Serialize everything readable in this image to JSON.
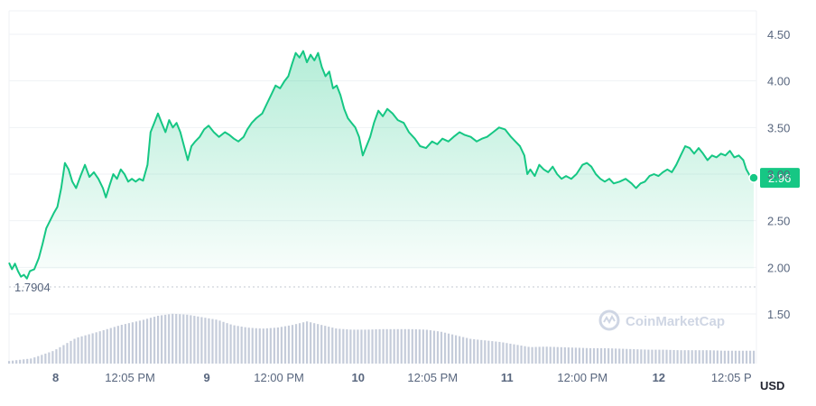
{
  "chart_data": {
    "type": "area",
    "unit": "USD",
    "price_line": {
      "color": "#16c784",
      "fill_top": "#16c784"
    },
    "volume_color": "#c5ccda",
    "current_price": {
      "label": "2.96",
      "value": 2.96
    },
    "reference_line": {
      "label": "1.7904",
      "value": 1.7904
    },
    "watermark": "CoinMarketCap",
    "ylim": [
      1.05,
      4.72
    ],
    "y_ticks": [
      {
        "label": "4.50",
        "value": 4.5
      },
      {
        "label": "4.00",
        "value": 4.0
      },
      {
        "label": "3.50",
        "value": 3.5
      },
      {
        "label": "3.00",
        "value": 3.0
      },
      {
        "label": "2.50",
        "value": 2.5
      },
      {
        "label": "2.00",
        "value": 2.0
      },
      {
        "label": "1.50",
        "value": 1.5
      }
    ],
    "x_ticks": [
      {
        "label": "8",
        "t": 0.0625,
        "day": true
      },
      {
        "label": "12:05 PM",
        "t": 0.1625,
        "day": false
      },
      {
        "label": "9",
        "t": 0.2656,
        "day": true
      },
      {
        "label": "12:00 PM",
        "t": 0.3625,
        "day": false
      },
      {
        "label": "10",
        "t": 0.4688,
        "day": true
      },
      {
        "label": "12:05 PM",
        "t": 0.5688,
        "day": false
      },
      {
        "label": "11",
        "t": 0.6688,
        "day": true
      },
      {
        "label": "12:00 PM",
        "t": 0.77,
        "day": false
      },
      {
        "label": "12",
        "t": 0.8725,
        "day": true
      },
      {
        "label": "12:05 P",
        "t": 0.97,
        "day": false
      }
    ],
    "series": [
      {
        "values": [
          [
            0.0,
            2.05
          ],
          [
            0.004,
            1.98
          ],
          [
            0.008,
            2.04
          ],
          [
            0.012,
            1.96
          ],
          [
            0.016,
            1.9
          ],
          [
            0.02,
            1.92
          ],
          [
            0.024,
            1.88
          ],
          [
            0.028,
            1.96
          ],
          [
            0.034,
            1.98
          ],
          [
            0.04,
            2.1
          ],
          [
            0.045,
            2.25
          ],
          [
            0.05,
            2.42
          ],
          [
            0.055,
            2.5
          ],
          [
            0.06,
            2.58
          ],
          [
            0.065,
            2.65
          ],
          [
            0.07,
            2.85
          ],
          [
            0.075,
            3.12
          ],
          [
            0.08,
            3.05
          ],
          [
            0.085,
            2.92
          ],
          [
            0.09,
            2.85
          ],
          [
            0.096,
            2.98
          ],
          [
            0.102,
            3.1
          ],
          [
            0.108,
            2.97
          ],
          [
            0.114,
            3.02
          ],
          [
            0.12,
            2.95
          ],
          [
            0.126,
            2.85
          ],
          [
            0.13,
            2.75
          ],
          [
            0.135,
            2.88
          ],
          [
            0.14,
            3.0
          ],
          [
            0.145,
            2.95
          ],
          [
            0.15,
            3.05
          ],
          [
            0.155,
            3.0
          ],
          [
            0.16,
            2.92
          ],
          [
            0.165,
            2.95
          ],
          [
            0.17,
            2.92
          ],
          [
            0.175,
            2.95
          ],
          [
            0.18,
            2.93
          ],
          [
            0.186,
            3.1
          ],
          [
            0.19,
            3.45
          ],
          [
            0.195,
            3.55
          ],
          [
            0.2,
            3.65
          ],
          [
            0.205,
            3.55
          ],
          [
            0.21,
            3.45
          ],
          [
            0.215,
            3.58
          ],
          [
            0.22,
            3.5
          ],
          [
            0.225,
            3.55
          ],
          [
            0.23,
            3.45
          ],
          [
            0.235,
            3.3
          ],
          [
            0.24,
            3.15
          ],
          [
            0.245,
            3.3
          ],
          [
            0.25,
            3.35
          ],
          [
            0.256,
            3.4
          ],
          [
            0.262,
            3.48
          ],
          [
            0.268,
            3.52
          ],
          [
            0.275,
            3.45
          ],
          [
            0.282,
            3.4
          ],
          [
            0.29,
            3.45
          ],
          [
            0.296,
            3.42
          ],
          [
            0.302,
            3.38
          ],
          [
            0.308,
            3.35
          ],
          [
            0.315,
            3.4
          ],
          [
            0.32,
            3.48
          ],
          [
            0.326,
            3.55
          ],
          [
            0.332,
            3.6
          ],
          [
            0.34,
            3.65
          ],
          [
            0.346,
            3.75
          ],
          [
            0.352,
            3.85
          ],
          [
            0.358,
            3.95
          ],
          [
            0.364,
            3.92
          ],
          [
            0.37,
            4.0
          ],
          [
            0.375,
            4.05
          ],
          [
            0.38,
            4.18
          ],
          [
            0.385,
            4.3
          ],
          [
            0.39,
            4.25
          ],
          [
            0.395,
            4.32
          ],
          [
            0.4,
            4.2
          ],
          [
            0.405,
            4.28
          ],
          [
            0.41,
            4.22
          ],
          [
            0.415,
            4.3
          ],
          [
            0.42,
            4.15
          ],
          [
            0.425,
            4.05
          ],
          [
            0.43,
            4.1
          ],
          [
            0.435,
            3.92
          ],
          [
            0.44,
            3.95
          ],
          [
            0.445,
            3.85
          ],
          [
            0.45,
            3.7
          ],
          [
            0.455,
            3.6
          ],
          [
            0.46,
            3.55
          ],
          [
            0.465,
            3.5
          ],
          [
            0.47,
            3.4
          ],
          [
            0.475,
            3.2
          ],
          [
            0.48,
            3.3
          ],
          [
            0.485,
            3.4
          ],
          [
            0.49,
            3.55
          ],
          [
            0.496,
            3.68
          ],
          [
            0.502,
            3.62
          ],
          [
            0.508,
            3.7
          ],
          [
            0.515,
            3.65
          ],
          [
            0.522,
            3.58
          ],
          [
            0.53,
            3.55
          ],
          [
            0.537,
            3.45
          ],
          [
            0.545,
            3.38
          ],
          [
            0.552,
            3.3
          ],
          [
            0.56,
            3.28
          ],
          [
            0.568,
            3.35
          ],
          [
            0.575,
            3.32
          ],
          [
            0.582,
            3.38
          ],
          [
            0.59,
            3.35
          ],
          [
            0.597,
            3.4
          ],
          [
            0.605,
            3.45
          ],
          [
            0.612,
            3.42
          ],
          [
            0.62,
            3.4
          ],
          [
            0.628,
            3.35
          ],
          [
            0.635,
            3.38
          ],
          [
            0.642,
            3.4
          ],
          [
            0.65,
            3.45
          ],
          [
            0.658,
            3.5
          ],
          [
            0.666,
            3.48
          ],
          [
            0.674,
            3.4
          ],
          [
            0.68,
            3.35
          ],
          [
            0.686,
            3.3
          ],
          [
            0.692,
            3.2
          ],
          [
            0.696,
            3.0
          ],
          [
            0.7,
            3.05
          ],
          [
            0.706,
            2.98
          ],
          [
            0.712,
            3.1
          ],
          [
            0.718,
            3.05
          ],
          [
            0.724,
            3.02
          ],
          [
            0.73,
            3.08
          ],
          [
            0.736,
            3.0
          ],
          [
            0.742,
            2.95
          ],
          [
            0.748,
            2.98
          ],
          [
            0.755,
            2.95
          ],
          [
            0.762,
            3.0
          ],
          [
            0.77,
            3.1
          ],
          [
            0.776,
            3.12
          ],
          [
            0.782,
            3.08
          ],
          [
            0.788,
            3.0
          ],
          [
            0.794,
            2.95
          ],
          [
            0.8,
            2.92
          ],
          [
            0.806,
            2.95
          ],
          [
            0.812,
            2.9
          ],
          [
            0.82,
            2.92
          ],
          [
            0.828,
            2.95
          ],
          [
            0.836,
            2.9
          ],
          [
            0.842,
            2.85
          ],
          [
            0.848,
            2.9
          ],
          [
            0.854,
            2.92
          ],
          [
            0.86,
            2.98
          ],
          [
            0.866,
            3.0
          ],
          [
            0.872,
            2.98
          ],
          [
            0.878,
            3.02
          ],
          [
            0.884,
            3.05
          ],
          [
            0.89,
            3.02
          ],
          [
            0.896,
            3.1
          ],
          [
            0.902,
            3.2
          ],
          [
            0.908,
            3.3
          ],
          [
            0.914,
            3.28
          ],
          [
            0.92,
            3.22
          ],
          [
            0.926,
            3.28
          ],
          [
            0.932,
            3.22
          ],
          [
            0.938,
            3.15
          ],
          [
            0.944,
            3.2
          ],
          [
            0.95,
            3.18
          ],
          [
            0.956,
            3.22
          ],
          [
            0.962,
            3.2
          ],
          [
            0.968,
            3.25
          ],
          [
            0.974,
            3.18
          ],
          [
            0.98,
            3.2
          ],
          [
            0.986,
            3.15
          ],
          [
            0.99,
            3.05
          ],
          [
            0.995,
            2.98
          ],
          [
            1.0,
            2.96
          ]
        ]
      }
    ],
    "volume": [
      [
        0.0,
        0.05
      ],
      [
        0.03,
        0.1
      ],
      [
        0.06,
        0.25
      ],
      [
        0.09,
        0.5
      ],
      [
        0.12,
        0.62
      ],
      [
        0.15,
        0.75
      ],
      [
        0.18,
        0.85
      ],
      [
        0.2,
        0.93
      ],
      [
        0.22,
        0.97
      ],
      [
        0.24,
        0.95
      ],
      [
        0.26,
        0.9
      ],
      [
        0.28,
        0.85
      ],
      [
        0.3,
        0.75
      ],
      [
        0.32,
        0.7
      ],
      [
        0.34,
        0.68
      ],
      [
        0.36,
        0.7
      ],
      [
        0.38,
        0.75
      ],
      [
        0.4,
        0.82
      ],
      [
        0.42,
        0.75
      ],
      [
        0.44,
        0.68
      ],
      [
        0.46,
        0.66
      ],
      [
        0.48,
        0.66
      ],
      [
        0.5,
        0.67
      ],
      [
        0.52,
        0.67
      ],
      [
        0.54,
        0.67
      ],
      [
        0.56,
        0.66
      ],
      [
        0.58,
        0.62
      ],
      [
        0.6,
        0.55
      ],
      [
        0.62,
        0.48
      ],
      [
        0.64,
        0.45
      ],
      [
        0.66,
        0.42
      ],
      [
        0.68,
        0.37
      ],
      [
        0.7,
        0.32
      ],
      [
        0.72,
        0.33
      ],
      [
        0.74,
        0.32
      ],
      [
        0.76,
        0.31
      ],
      [
        0.78,
        0.3
      ],
      [
        0.8,
        0.3
      ],
      [
        0.82,
        0.29
      ],
      [
        0.84,
        0.28
      ],
      [
        0.86,
        0.27
      ],
      [
        0.88,
        0.27
      ],
      [
        0.9,
        0.26
      ],
      [
        0.92,
        0.26
      ],
      [
        0.94,
        0.26
      ],
      [
        0.96,
        0.25
      ],
      [
        0.98,
        0.25
      ],
      [
        1.0,
        0.25
      ]
    ]
  }
}
